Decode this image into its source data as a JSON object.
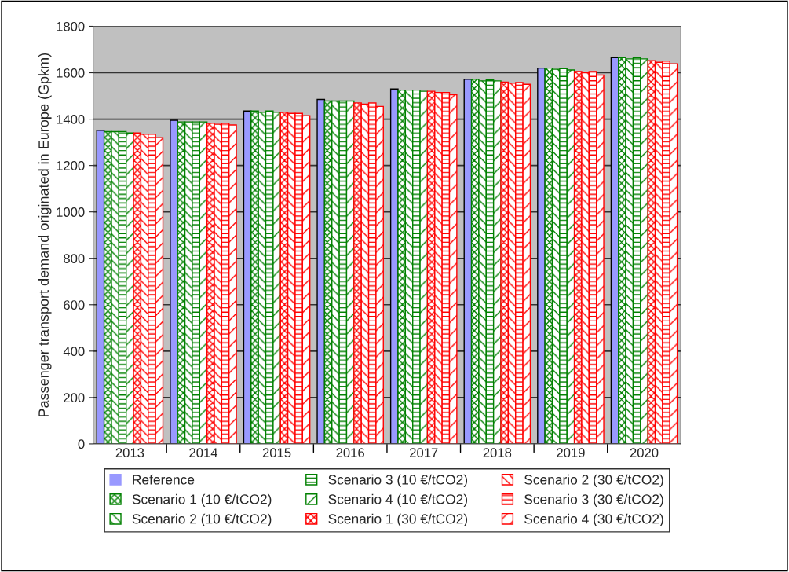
{
  "chart_data": {
    "type": "bar",
    "ylabel": "Passenger transport demand originated in Europe (Gpkm)",
    "categories": [
      "2013",
      "2014",
      "2015",
      "2016",
      "2017",
      "2018",
      "2019",
      "2020"
    ],
    "series": [
      {
        "name": "Reference",
        "color": "#9999ff",
        "values": [
          1352,
          1395,
          1435,
          1485,
          1530,
          1572,
          1620,
          1665
        ]
      },
      {
        "name": "Scenario 1 (10 €/tCO2)",
        "color": "#008000",
        "values": [
          1346,
          1388,
          1435,
          1478,
          1525,
          1572,
          1620,
          1665
        ]
      },
      {
        "name": "Scenario 2 (10 €/tCO2)",
        "color": "#008000",
        "values": [
          1346,
          1388,
          1430,
          1478,
          1525,
          1565,
          1615,
          1660
        ]
      },
      {
        "name": "Scenario 3 (10 €/tCO2)",
        "color": "#008000",
        "values": [
          1346,
          1388,
          1435,
          1478,
          1525,
          1570,
          1618,
          1665
        ]
      },
      {
        "name": "Scenario 4 (10 €/tCO2)",
        "color": "#008000",
        "values": [
          1340,
          1388,
          1430,
          1478,
          1520,
          1565,
          1612,
          1660
        ]
      },
      {
        "name": "Scenario 1 (30 €/tCO2)",
        "color": "#ff0000",
        "values": [
          1340,
          1382,
          1430,
          1470,
          1520,
          1560,
          1605,
          1652
        ]
      },
      {
        "name": "Scenario 2 (30 €/tCO2)",
        "color": "#ff0000",
        "values": [
          1335,
          1378,
          1425,
          1465,
          1515,
          1555,
          1600,
          1645
        ]
      },
      {
        "name": "Scenario 3 (30 €/tCO2)",
        "color": "#ff0000",
        "values": [
          1335,
          1382,
          1425,
          1470,
          1515,
          1558,
          1605,
          1650
        ]
      },
      {
        "name": "Scenario 4 (30 €/tCO2)",
        "color": "#ff0000",
        "values": [
          1320,
          1375,
          1415,
          1455,
          1505,
          1550,
          1590,
          1638
        ]
      }
    ],
    "ylim": [
      0,
      1800
    ],
    "yticks": [
      0,
      200,
      400,
      600,
      800,
      1000,
      1200,
      1400,
      1600,
      1800
    ],
    "grid": "y",
    "legend": "bottom"
  }
}
